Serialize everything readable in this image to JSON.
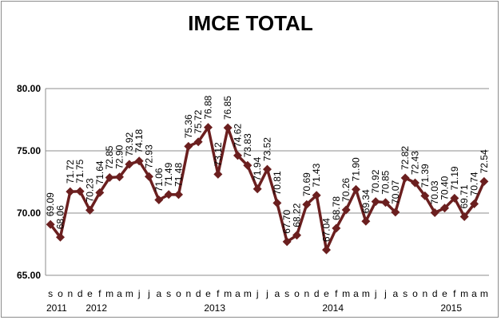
{
  "chart_data": {
    "type": "line",
    "title": "IMCE TOTAL",
    "ylim": [
      65,
      80
    ],
    "yticks": [
      "65.00",
      "70.00",
      "75.00",
      "80.00"
    ],
    "grid": true,
    "line_color": "#6b1f1f",
    "marker": "diamond",
    "x": [
      "s",
      "o",
      "n",
      "d",
      "e",
      "f",
      "m",
      "a",
      "m",
      "j",
      "j",
      "a",
      "s",
      "o",
      "n",
      "d",
      "e",
      "f",
      "m",
      "a",
      "m",
      "j",
      "j",
      "a",
      "s",
      "o",
      "n",
      "d",
      "e",
      "f",
      "m",
      "a",
      "m",
      "j",
      "j",
      "a",
      "s",
      "o",
      "n",
      "d",
      "e",
      "f",
      "m",
      "a",
      "m"
    ],
    "years": [
      {
        "label": "2011",
        "index": 0
      },
      {
        "label": "2012",
        "index": 4
      },
      {
        "label": "2013",
        "index": 16
      },
      {
        "label": "2014",
        "index": 28
      },
      {
        "label": "2015",
        "index": 40
      }
    ],
    "series": [
      {
        "values": [
          69.09,
          68.06,
          71.72,
          71.75,
          70.23,
          71.64,
          72.85,
          72.9,
          73.92,
          74.18,
          72.93,
          71.06,
          71.49,
          71.48,
          75.36,
          75.72,
          76.88,
          73.12,
          76.85,
          74.62,
          73.83,
          71.94,
          73.52,
          70.81,
          67.7,
          68.22,
          70.69,
          71.43,
          67.04,
          68.78,
          70.26,
          71.9,
          69.34,
          70.92,
          70.85,
          70.07,
          72.82,
          72.43,
          71.39,
          70.03,
          70.4,
          71.19,
          69.71,
          70.74,
          72.54
        ],
        "labels": [
          "69.09",
          "68.06",
          "71.72",
          "71.75",
          "70.23",
          "71.64",
          "72.85",
          "72.90",
          "73.92",
          "74.18",
          "72.93",
          "71.06",
          "71.49",
          "71.48",
          "75.36",
          "75.72",
          "76.88",
          "73.12",
          "76.85",
          "74.62",
          "73.83",
          "71.94",
          "73.52",
          "70.81",
          "67.70",
          "68.22",
          "70.69",
          "71.43",
          "67.04",
          "68.78",
          "70.26",
          "71.90",
          "69.34",
          "70.92",
          "70.85",
          "70.07",
          "72.82",
          "72.43",
          "71.39",
          "70.03",
          "70.40",
          "71.19",
          "69.71",
          "70.74",
          "72.54"
        ]
      }
    ]
  }
}
